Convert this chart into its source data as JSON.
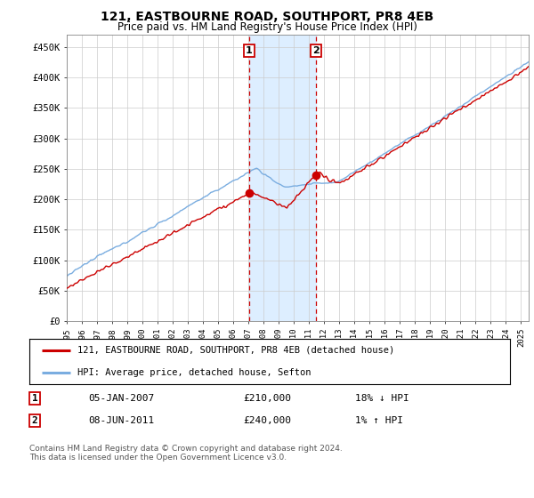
{
  "title": "121, EASTBOURNE ROAD, SOUTHPORT, PR8 4EB",
  "subtitle": "Price paid vs. HM Land Registry's House Price Index (HPI)",
  "ylabel_ticks": [
    "£0",
    "£50K",
    "£100K",
    "£150K",
    "£200K",
    "£250K",
    "£300K",
    "£350K",
    "£400K",
    "£450K"
  ],
  "ytick_values": [
    0,
    50000,
    100000,
    150000,
    200000,
    250000,
    300000,
    350000,
    400000,
    450000
  ],
  "ylim": [
    0,
    470000
  ],
  "xlim_start": 1995.0,
  "xlim_end": 2025.5,
  "hpi_color": "#7aade0",
  "price_color": "#cc0000",
  "transaction1_date": 2007.03,
  "transaction1_price": 210000,
  "transaction2_date": 2011.44,
  "transaction2_price": 240000,
  "vline1_x": 2007.03,
  "vline2_x": 2011.44,
  "legend_label1": "121, EASTBOURNE ROAD, SOUTHPORT, PR8 4EB (detached house)",
  "legend_label2": "HPI: Average price, detached house, Sefton",
  "table_row1": [
    "1",
    "05-JAN-2007",
    "£210,000",
    "18% ↓ HPI"
  ],
  "table_row2": [
    "2",
    "08-JUN-2011",
    "£240,000",
    "1% ↑ HPI"
  ],
  "footnote": "Contains HM Land Registry data © Crown copyright and database right 2024.\nThis data is licensed under the Open Government Licence v3.0.",
  "background_color": "#ffffff",
  "plot_bg_color": "#ffffff",
  "grid_color": "#cccccc",
  "span_color": "#ddeeff"
}
